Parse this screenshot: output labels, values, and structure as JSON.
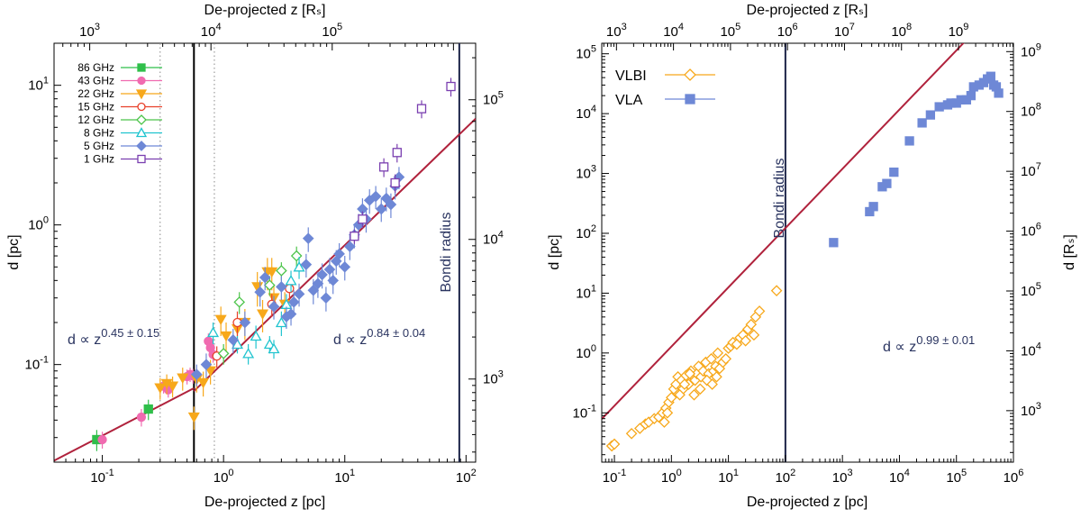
{
  "chart_data": [
    {
      "type": "scatter",
      "panel": "left",
      "xscale": "log",
      "yscale": "log",
      "xlim": [
        0.04,
        120
      ],
      "ylim": [
        0.02,
        20
      ],
      "xlabel": "De-projected z [pc]",
      "ylabel": "d [pc]",
      "top_axis_label": "De-projected z [Rₛ]",
      "right_axis_label": "",
      "x_ticks": [
        {
          "v": 0.1,
          "m": "10",
          "e": "-1"
        },
        {
          "v": 1,
          "m": "10",
          "e": "0"
        },
        {
          "v": 10,
          "m": "10",
          "e": "1"
        },
        {
          "v": 100,
          "m": "10",
          "e": "2"
        }
      ],
      "y_ticks": [
        {
          "v": 0.1,
          "m": "10",
          "e": "-1"
        },
        {
          "v": 1,
          "m": "10",
          "e": "0"
        },
        {
          "v": 10,
          "m": "10",
          "e": "1"
        }
      ],
      "top_ticks": [
        {
          "v": 1000,
          "m": "10",
          "e": "3"
        },
        {
          "v": 10000,
          "m": "10",
          "e": "4"
        },
        {
          "v": 100000,
          "m": "10",
          "e": "5"
        }
      ],
      "right_ticks": [
        {
          "v": 1000,
          "m": "10",
          "e": "3"
        },
        {
          "v": 10000,
          "m": "10",
          "e": "4"
        },
        {
          "v": 100000,
          "m": "10",
          "e": "5"
        }
      ],
      "rs_per_pc": 12700,
      "vlines": [
        {
          "x": 0.3,
          "style": "dotted"
        },
        {
          "x": 0.57,
          "style": "solid"
        },
        {
          "x": 0.84,
          "style": "dotted"
        },
        {
          "x": 88,
          "style": "bondi"
        }
      ],
      "bondi_label": "Bondi radius",
      "fit_lines": [
        {
          "x0": 0.04,
          "x1": 0.57,
          "y0": 0.0205,
          "slope": 0.45
        },
        {
          "x0": 0.57,
          "x1": 120,
          "y0": 0.0645,
          "slope": 0.84
        }
      ],
      "annotations": [
        {
          "base": "d ∝ z",
          "exp": "0.45 ± 0.15",
          "pos": "left-middle"
        },
        {
          "base": "d ∝ z",
          "exp": "0.84 ± 0.04",
          "pos": "right-middle"
        }
      ],
      "series": [
        {
          "name": "86 GHz",
          "color": "#2fbf4a",
          "marker": "square-filled",
          "x": [
            0.09,
            0.24
          ],
          "y": [
            0.029,
            0.048
          ],
          "err": [
            0.005,
            0.008
          ]
        },
        {
          "name": "43 GHz",
          "color": "#f06bb0",
          "marker": "circle-filled",
          "x": [
            0.1,
            0.21,
            0.32,
            0.35,
            0.5,
            0.53,
            0.56,
            0.75,
            0.78,
            0.82
          ],
          "y": [
            0.029,
            0.042,
            0.07,
            0.066,
            0.082,
            0.085,
            0.083,
            0.147,
            0.132,
            0.118
          ],
          "err": [
            0.004,
            0.006,
            0.008,
            0.008,
            0.01,
            0.01,
            0.01,
            0.02,
            0.02,
            0.015
          ]
        },
        {
          "name": "22 GHz",
          "color": "#f7a81b",
          "marker": "triangle-down-filled",
          "x": [
            0.3,
            0.34,
            0.38,
            0.46,
            0.57,
            0.6,
            0.68,
            0.78,
            0.95,
            1.05,
            1.3,
            1.5,
            1.9,
            2.1,
            2.3,
            2.5,
            2.6,
            3.2
          ],
          "y": [
            0.068,
            0.073,
            0.07,
            0.08,
            0.042,
            0.078,
            0.074,
            0.09,
            0.21,
            0.16,
            0.18,
            0.2,
            0.36,
            0.23,
            0.46,
            0.46,
            0.3,
            0.27
          ],
          "err": [
            0.012,
            0.012,
            0.012,
            0.015,
            0.008,
            0.015,
            0.015,
            0.018,
            0.05,
            0.04,
            0.04,
            0.05,
            0.1,
            0.06,
            0.12,
            0.12,
            0.07,
            0.06
          ]
        },
        {
          "name": "15 GHz",
          "color": "#e8402a",
          "marker": "circle-open",
          "x": [
            0.88,
            1.3,
            2.5,
            3.5
          ],
          "y": [
            0.115,
            0.2,
            0.27,
            0.35
          ],
          "err": [
            0.02,
            0.04,
            0.05,
            0.06
          ]
        },
        {
          "name": "12 GHz",
          "color": "#4cc44a",
          "marker": "diamond-open",
          "x": [
            1.0,
            1.35,
            2.4,
            3.0,
            4.0
          ],
          "y": [
            0.12,
            0.28,
            0.37,
            0.47,
            0.6
          ],
          "err": [
            0.02,
            0.05,
            0.06,
            0.07,
            0.1
          ]
        },
        {
          "name": "8 GHz",
          "color": "#20c4cf",
          "marker": "triangle-up-open",
          "x": [
            0.82,
            1.3,
            1.6,
            1.85,
            2.4,
            2.6,
            3.0,
            3.3,
            3.6,
            4.2
          ],
          "y": [
            0.17,
            0.14,
            0.12,
            0.16,
            0.14,
            0.13,
            0.2,
            0.27,
            0.4,
            0.5
          ],
          "err": [
            0.03,
            0.02,
            0.02,
            0.03,
            0.02,
            0.02,
            0.04,
            0.05,
            0.07,
            0.09
          ]
        },
        {
          "name": "5 GHz",
          "color": "#6e88d6",
          "marker": "diamond-filled",
          "x": [
            0.6,
            0.72,
            1.2,
            1.5,
            2.0,
            2.2,
            2.6,
            3.0,
            3.3,
            3.8,
            4.2,
            4.8,
            5.5,
            6.0,
            6.5,
            7.0,
            7.5,
            8.0,
            8.5,
            9.0,
            10.0,
            11.0,
            12.0,
            13.0,
            14.0,
            15.0,
            16.0,
            18.0,
            20.0,
            22.0,
            24.0,
            26.0,
            28.0,
            3.6,
            5.0
          ],
          "y": [
            0.085,
            0.1,
            0.15,
            0.2,
            0.33,
            0.42,
            0.26,
            0.36,
            0.22,
            0.28,
            0.32,
            0.52,
            0.34,
            0.38,
            0.44,
            0.3,
            0.48,
            0.4,
            0.55,
            0.62,
            0.5,
            0.7,
            0.85,
            1.0,
            1.3,
            1.1,
            1.5,
            1.6,
            1.3,
            1.55,
            1.4,
            1.9,
            2.2,
            0.23,
            0.8
          ],
          "err": [
            0.015,
            0.02,
            0.03,
            0.04,
            0.07,
            0.08,
            0.05,
            0.07,
            0.04,
            0.06,
            0.06,
            0.1,
            0.07,
            0.08,
            0.09,
            0.06,
            0.1,
            0.08,
            0.11,
            0.12,
            0.1,
            0.14,
            0.17,
            0.2,
            0.25,
            0.22,
            0.3,
            0.3,
            0.25,
            0.3,
            0.28,
            0.38,
            0.4,
            0.04,
            0.16
          ]
        },
        {
          "name": "1 GHz",
          "color": "#7a3fb0",
          "marker": "square-open",
          "x": [
            12.0,
            14.0,
            21.0,
            26.0,
            27.0,
            43.0,
            75.0
          ],
          "y": [
            0.83,
            1.1,
            2.6,
            2.0,
            3.3,
            6.8,
            9.8
          ],
          "err": [
            0.1,
            0.15,
            0.4,
            0.3,
            0.5,
            1.0,
            1.5
          ]
        }
      ]
    },
    {
      "type": "scatter",
      "panel": "right",
      "xscale": "log",
      "yscale": "log",
      "xlim": [
        0.06,
        1000000
      ],
      "ylim": [
        0.015,
        150000
      ],
      "xlabel": "De-projected z [pc]",
      "ylabel": "d [pc]",
      "top_axis_label": "De-projected z [Rₛ]",
      "right_axis_label": "d [Rₛ]",
      "x_ticks": [
        {
          "v": 0.1,
          "m": "10",
          "e": "-1"
        },
        {
          "v": 1,
          "m": "10",
          "e": "0"
        },
        {
          "v": 10,
          "m": "10",
          "e": "1"
        },
        {
          "v": 100,
          "m": "10",
          "e": "2"
        },
        {
          "v": 1000,
          "m": "10",
          "e": "3"
        },
        {
          "v": 10000,
          "m": "10",
          "e": "4"
        },
        {
          "v": 100000,
          "m": "10",
          "e": "5"
        },
        {
          "v": 1000000,
          "m": "10",
          "e": "6"
        }
      ],
      "y_ticks": [
        {
          "v": 0.1,
          "m": "10",
          "e": "-1"
        },
        {
          "v": 1,
          "m": "10",
          "e": "0"
        },
        {
          "v": 10,
          "m": "10",
          "e": "1"
        },
        {
          "v": 100,
          "m": "10",
          "e": "2"
        },
        {
          "v": 1000,
          "m": "10",
          "e": "3"
        },
        {
          "v": 10000,
          "m": "10",
          "e": "4"
        },
        {
          "v": 100000,
          "m": "10",
          "e": "5"
        }
      ],
      "top_ticks": [
        {
          "v": 1000,
          "m": "10",
          "e": "3"
        },
        {
          "v": 10000,
          "m": "10",
          "e": "4"
        },
        {
          "v": 100000,
          "m": "10",
          "e": "5"
        },
        {
          "v": 1000000,
          "m": "10",
          "e": "6"
        },
        {
          "v": 10000000,
          "m": "10",
          "e": "7"
        },
        {
          "v": 100000000,
          "m": "10",
          "e": "8"
        },
        {
          "v": 1000000000,
          "m": "10",
          "e": "9"
        }
      ],
      "right_ticks": [
        {
          "v": 1000,
          "m": "10",
          "e": "3"
        },
        {
          "v": 10000,
          "m": "10",
          "e": "4"
        },
        {
          "v": 100000,
          "m": "10",
          "e": "5"
        },
        {
          "v": 1000000,
          "m": "10",
          "e": "6"
        },
        {
          "v": 10000000,
          "m": "10",
          "e": "7"
        },
        {
          "v": 100000000,
          "m": "10",
          "e": "8"
        },
        {
          "v": 1000000000,
          "m": "10",
          "e": "9"
        }
      ],
      "rs_per_pc": 9200,
      "vlines": [
        {
          "x": 100,
          "style": "bondi"
        }
      ],
      "bondi_label": "Bondi radius",
      "fit_lines": [
        {
          "x0": 0.06,
          "x1": 1000000,
          "y0": 0.079,
          "slope": 0.99
        }
      ],
      "annotations": [
        {
          "base": "d ∝ z",
          "exp": "0.99 ± 0.01",
          "pos": "right-middle"
        }
      ],
      "series": [
        {
          "name": "VLBI",
          "color": "#f7a81b",
          "marker": "diamond-open",
          "x": [
            0.09,
            0.1,
            0.2,
            0.28,
            0.35,
            0.4,
            0.5,
            0.6,
            0.7,
            0.8,
            0.9,
            1.0,
            1.1,
            1.2,
            1.3,
            1.5,
            1.6,
            1.8,
            2.0,
            2.2,
            2.4,
            2.6,
            2.8,
            3.0,
            3.3,
            3.6,
            4.0,
            4.5,
            5.0,
            5.5,
            6.0,
            6.5,
            7.0,
            8.0,
            9.0,
            10.0,
            11.0,
            12.0,
            14.0,
            16.0,
            18.0,
            20.0,
            22.0,
            25.0,
            28.0,
            30.0,
            35.0,
            70.0,
            1.4,
            1.7,
            2.1,
            2.5,
            3.2,
            4.2,
            5.2,
            6.2,
            0.75,
            0.85
          ],
          "y": [
            0.028,
            0.03,
            0.045,
            0.055,
            0.065,
            0.07,
            0.08,
            0.085,
            0.1,
            0.12,
            0.15,
            0.18,
            0.25,
            0.3,
            0.4,
            0.35,
            0.25,
            0.42,
            0.3,
            0.5,
            0.4,
            0.35,
            0.45,
            0.6,
            0.4,
            0.5,
            0.7,
            0.45,
            0.8,
            0.5,
            0.6,
            1.0,
            0.55,
            0.7,
            0.8,
            1.2,
            1.3,
            1.5,
            1.4,
            1.8,
            2.0,
            1.6,
            2.5,
            3.0,
            2.0,
            4.0,
            5.0,
            11.0,
            0.2,
            0.3,
            0.45,
            0.2,
            0.25,
            0.35,
            0.3,
            0.4,
            0.07,
            0.1
          ],
          "err": []
        },
        {
          "name": "VLA",
          "color": "#6e88d6",
          "marker": "square-filled",
          "x": [
            700,
            3000,
            3500,
            5000,
            6000,
            8000,
            15000,
            25000,
            35000,
            50000,
            70000,
            80000,
            100000,
            120000,
            150000,
            180000,
            200000,
            250000,
            300000,
            350000,
            400000,
            450000,
            500000,
            550000
          ],
          "y": [
            70,
            230,
            280,
            600,
            680,
            1050,
            3500,
            7000,
            9500,
            13000,
            14000,
            15000,
            15000,
            17000,
            17000,
            20000,
            28000,
            30000,
            33000,
            38000,
            42000,
            30000,
            28000,
            22000
          ],
          "err": []
        }
      ]
    }
  ],
  "labels": {
    "left_bondi": "Bondi radius",
    "right_bondi": "Bondi radius"
  }
}
